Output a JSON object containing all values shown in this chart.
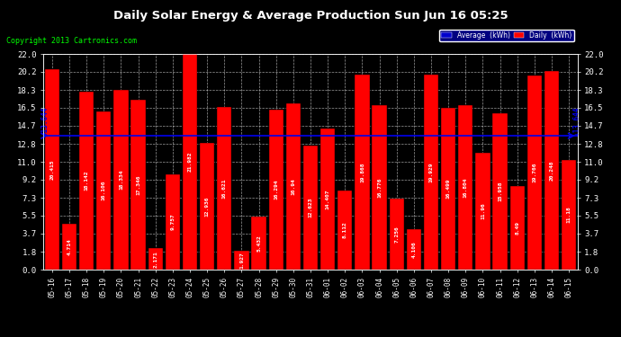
{
  "title": "Daily Solar Energy & Average Production Sun Jun 16 05:25",
  "copyright": "Copyright 2013 Cartronics.com",
  "categories": [
    "05-16",
    "05-17",
    "05-18",
    "05-19",
    "05-20",
    "05-21",
    "05-22",
    "05-23",
    "05-24",
    "05-25",
    "05-26",
    "05-27",
    "05-28",
    "05-29",
    "05-30",
    "05-31",
    "06-01",
    "06-02",
    "06-03",
    "06-04",
    "06-05",
    "06-06",
    "06-07",
    "06-08",
    "06-09",
    "06-10",
    "06-11",
    "06-12",
    "06-13",
    "06-14",
    "06-15"
  ],
  "values": [
    20.415,
    4.714,
    18.142,
    16.106,
    18.334,
    17.346,
    2.171,
    9.757,
    21.982,
    12.936,
    16.621,
    1.927,
    5.432,
    16.294,
    16.94,
    12.623,
    14.407,
    8.112,
    19.868,
    16.776,
    7.256,
    4.106,
    19.929,
    16.499,
    16.804,
    11.96,
    15.958,
    8.49,
    19.766,
    20.248,
    11.18
  ],
  "average_line": 13.644,
  "bar_color": "#ff0000",
  "average_line_color": "#0000ee",
  "background_color": "#000000",
  "plot_bg_color": "#000000",
  "grid_color": "#ffffff",
  "text_color": "#ffffff",
  "bar_edge_color": "#000000",
  "ylim": [
    0.0,
    22.0
  ],
  "yticks": [
    0.0,
    1.8,
    3.7,
    5.5,
    7.3,
    9.2,
    11.0,
    12.8,
    14.7,
    16.5,
    18.3,
    20.2,
    22.0
  ],
  "average_label": "Average  (kWh)",
  "daily_label": "Daily  (kWh)",
  "avg_annotation": "13.644",
  "legend_avg_color": "#0000cc",
  "legend_daily_color": "#ff0000",
  "copyright_color": "#00ff00",
  "avg_text_color": "#0000ee"
}
